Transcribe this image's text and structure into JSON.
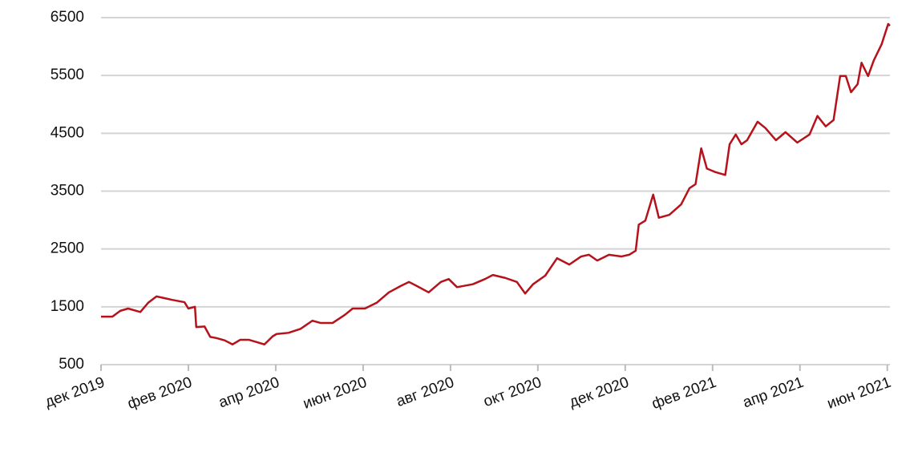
{
  "chart_data": {
    "type": "line",
    "x": [
      0,
      0.26,
      0.44,
      0.62,
      0.9,
      1.08,
      1.27,
      1.45,
      1.63,
      1.91,
      2.0,
      2.15,
      2.18,
      2.37,
      2.5,
      2.64,
      2.83,
      3.01,
      3.19,
      3.38,
      3.56,
      3.74,
      3.93,
      4.02,
      4.29,
      4.57,
      4.84,
      5.03,
      5.3,
      5.58,
      5.76,
      6.04,
      6.31,
      6.59,
      6.86,
      7.05,
      7.23,
      7.5,
      7.78,
      7.96,
      8.15,
      8.51,
      8.79,
      8.97,
      9.25,
      9.52,
      9.71,
      9.89,
      10.17,
      10.44,
      10.72,
      10.99,
      11.17,
      11.36,
      11.63,
      11.91,
      12.09,
      12.24,
      12.31,
      12.46,
      12.64,
      12.77,
      13.01,
      13.28,
      13.47,
      13.61,
      13.74,
      13.87,
      14.06,
      14.29,
      14.39,
      14.53,
      14.66,
      14.79,
      15.03,
      15.21,
      15.45,
      15.67,
      15.94,
      16.22,
      16.4,
      16.59,
      16.77,
      16.92,
      17.05,
      17.17,
      17.32,
      17.41,
      17.56,
      17.69,
      17.87,
      17.96,
      18.02,
      18.06
    ],
    "series": [
      {
        "color": "#b5121b",
        "values": [
          1330,
          1330,
          1430,
          1470,
          1410,
          1570,
          1680,
          1650,
          1620,
          1580,
          1470,
          1500,
          1150,
          1160,
          980,
          960,
          920,
          850,
          930,
          930,
          890,
          850,
          990,
          1030,
          1050,
          1120,
          1260,
          1220,
          1220,
          1360,
          1470,
          1470,
          1570,
          1750,
          1860,
          1930,
          1860,
          1750,
          1930,
          1980,
          1840,
          1890,
          1980,
          2050,
          2000,
          1930,
          1730,
          1890,
          2040,
          2340,
          2230,
          2370,
          2400,
          2300,
          2400,
          2370,
          2400,
          2470,
          2920,
          2990,
          3440,
          3040,
          3090,
          3270,
          3550,
          3620,
          4240,
          3890,
          3830,
          3780,
          4310,
          4480,
          4310,
          4380,
          4700,
          4590,
          4380,
          4520,
          4340,
          4480,
          4800,
          4620,
          4730,
          5490,
          5490,
          5210,
          5350,
          5720,
          5490,
          5760,
          6040,
          6250,
          6390,
          6360
        ]
      }
    ],
    "xlim": [
      0,
      18.06
    ],
    "xticks": [
      {
        "value": 0,
        "label": "дек 2019"
      },
      {
        "value": 2,
        "label": "фев 2020"
      },
      {
        "value": 4,
        "label": "апр 2020"
      },
      {
        "value": 6,
        "label": "июн 2020"
      },
      {
        "value": 8,
        "label": "авг 2020"
      },
      {
        "value": 10,
        "label": "окт 2020"
      },
      {
        "value": 12,
        "label": "дек 2020"
      },
      {
        "value": 14,
        "label": "фев 2021"
      },
      {
        "value": 16,
        "label": "апр 2021"
      },
      {
        "value": 18,
        "label": "июн 2021"
      }
    ],
    "ylim": [
      500,
      6500
    ],
    "yticks": [
      500,
      1500,
      2500,
      3500,
      4500,
      5500,
      6500
    ],
    "grid": true
  }
}
